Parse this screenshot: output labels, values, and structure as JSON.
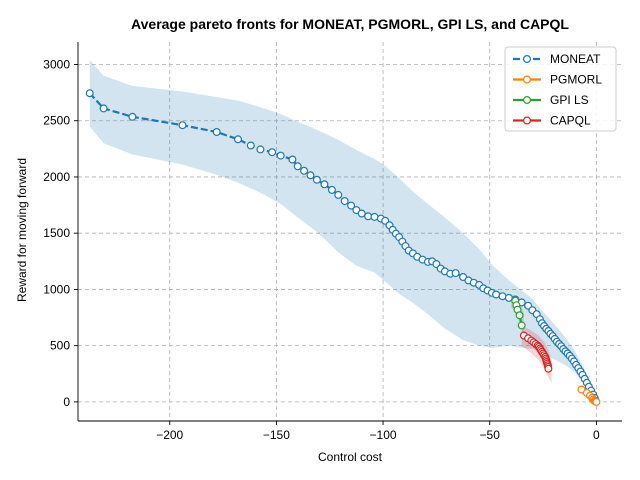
{
  "chart_data": {
    "type": "line",
    "title": "Average pareto fronts for MONEAT, PGMORL, GPI LS, and CAPQL",
    "xlabel": "Control cost",
    "ylabel": "Reward for moving forward",
    "xlim": [
      -243,
      12
    ],
    "ylim": [
      -170,
      3200
    ],
    "xticks": [
      -200,
      -150,
      -100,
      -50,
      0
    ],
    "xtick_labels": [
      "−200",
      "−150",
      "−100",
      "−50",
      "0"
    ],
    "yticks": [
      0,
      500,
      1000,
      1500,
      2000,
      2500,
      3000
    ],
    "ytick_labels": [
      "0",
      "500",
      "1000",
      "1500",
      "2000",
      "2500",
      "3000"
    ],
    "grid": true,
    "legend_position": "top-right",
    "series": [
      {
        "name": "MONEAT",
        "color": "#1f77b4",
        "linestyle": "dashed",
        "points": [
          [
            -237.5,
            2745
          ],
          [
            -231,
            2610
          ],
          [
            -217.5,
            2535
          ],
          [
            -194,
            2460
          ],
          [
            -178,
            2400
          ],
          [
            -168,
            2335
          ],
          [
            -162,
            2280
          ],
          [
            -157.5,
            2245
          ],
          [
            -152,
            2220
          ],
          [
            -148,
            2190
          ],
          [
            -142.5,
            2155
          ],
          [
            -140,
            2095
          ],
          [
            -137,
            2055
          ],
          [
            -134,
            2015
          ],
          [
            -131,
            1975
          ],
          [
            -127.5,
            1935
          ],
          [
            -124,
            1885
          ],
          [
            -121,
            1840
          ],
          [
            -118,
            1785
          ],
          [
            -115,
            1745
          ],
          [
            -112.5,
            1705
          ],
          [
            -110,
            1675
          ],
          [
            -107,
            1650
          ],
          [
            -104,
            1645
          ],
          [
            -101,
            1630
          ],
          [
            -99,
            1610
          ],
          [
            -97,
            1570
          ],
          [
            -95.5,
            1530
          ],
          [
            -94,
            1495
          ],
          [
            -92.5,
            1465
          ],
          [
            -91,
            1425
          ],
          [
            -89.5,
            1385
          ],
          [
            -88,
            1345
          ],
          [
            -86,
            1320
          ],
          [
            -84,
            1290
          ],
          [
            -81.5,
            1265
          ],
          [
            -79,
            1245
          ],
          [
            -77,
            1250
          ],
          [
            -75,
            1225
          ],
          [
            -73,
            1185
          ],
          [
            -71,
            1160
          ],
          [
            -68.5,
            1140
          ],
          [
            -66,
            1145
          ],
          [
            -62.5,
            1110
          ],
          [
            -60,
            1080
          ],
          [
            -57.5,
            1060
          ],
          [
            -55,
            1040
          ],
          [
            -53,
            1010
          ],
          [
            -51,
            990
          ],
          [
            -49,
            970
          ],
          [
            -47,
            955
          ],
          [
            -44,
            940
          ],
          [
            -41,
            925
          ],
          [
            -38,
            910
          ],
          [
            -35,
            885
          ],
          [
            -32,
            855
          ],
          [
            -30,
            815
          ],
          [
            -28,
            780
          ],
          [
            -26.5,
            735
          ],
          [
            -25.5,
            700
          ],
          [
            -24.5,
            675
          ],
          [
            -23.5,
            650
          ],
          [
            -22.5,
            630
          ],
          [
            -21.5,
            605
          ],
          [
            -20.5,
            585
          ],
          [
            -19.5,
            560
          ],
          [
            -18.5,
            535
          ],
          [
            -17.5,
            515
          ],
          [
            -16.5,
            495
          ],
          [
            -15.5,
            470
          ],
          [
            -14.5,
            450
          ],
          [
            -13.5,
            430
          ],
          [
            -12.5,
            410
          ],
          [
            -11.5,
            385
          ],
          [
            -10.5,
            360
          ],
          [
            -9.5,
            330
          ],
          [
            -8.5,
            300
          ],
          [
            -7.5,
            270
          ],
          [
            -6.5,
            240
          ],
          [
            -5.5,
            205
          ],
          [
            -4.5,
            170
          ],
          [
            -3.5,
            135
          ],
          [
            -2.5,
            100
          ],
          [
            -1.5,
            65
          ],
          [
            -0.8,
            35
          ],
          [
            -0.3,
            10
          ]
        ],
        "band_upper": [
          [
            -237.5,
            3040
          ],
          [
            -231,
            2900
          ],
          [
            -217.5,
            2810
          ],
          [
            -194,
            2760
          ],
          [
            -178,
            2710
          ],
          [
            -168,
            2680
          ],
          [
            -157.5,
            2620
          ],
          [
            -148,
            2560
          ],
          [
            -140,
            2490
          ],
          [
            -131,
            2420
          ],
          [
            -121,
            2330
          ],
          [
            -112.5,
            2240
          ],
          [
            -104,
            2160
          ],
          [
            -99,
            2100
          ],
          [
            -92.5,
            1990
          ],
          [
            -86,
            1870
          ],
          [
            -79,
            1760
          ],
          [
            -71,
            1640
          ],
          [
            -62.5,
            1500
          ],
          [
            -55,
            1360
          ],
          [
            -49,
            1220
          ],
          [
            -41,
            1080
          ],
          [
            -35,
            990
          ],
          [
            -30,
            920
          ],
          [
            -26,
            820
          ],
          [
            -22,
            740
          ],
          [
            -18,
            650
          ],
          [
            -14,
            560
          ],
          [
            -10,
            450
          ],
          [
            -6,
            310
          ],
          [
            -3,
            180
          ],
          [
            -1,
            80
          ],
          [
            0,
            20
          ]
        ],
        "band_lower": [
          [
            -237.5,
            2450
          ],
          [
            -231,
            2300
          ],
          [
            -217.5,
            2200
          ],
          [
            -194,
            2110
          ],
          [
            -178,
            2020
          ],
          [
            -168,
            1950
          ],
          [
            -157.5,
            1860
          ],
          [
            -148,
            1760
          ],
          [
            -140,
            1640
          ],
          [
            -131,
            1510
          ],
          [
            -121,
            1330
          ],
          [
            -112.5,
            1210
          ],
          [
            -104,
            1150
          ],
          [
            -99,
            1070
          ],
          [
            -92.5,
            960
          ],
          [
            -86,
            880
          ],
          [
            -79,
            780
          ],
          [
            -71,
            650
          ],
          [
            -62.5,
            550
          ],
          [
            -55,
            500
          ],
          [
            -49,
            480
          ],
          [
            -41,
            500
          ],
          [
            -35,
            480
          ],
          [
            -30,
            470
          ],
          [
            -26,
            430
          ],
          [
            -22,
            400
          ],
          [
            -18,
            360
          ],
          [
            -14,
            320
          ],
          [
            -10,
            260
          ],
          [
            -6,
            180
          ],
          [
            -3,
            90
          ],
          [
            -1,
            20
          ],
          [
            0,
            -10
          ]
        ]
      },
      {
        "name": "PGMORL",
        "color": "#ff7f0e",
        "linestyle": "solid",
        "points": [
          [
            -7,
            110
          ],
          [
            -4.5,
            80
          ],
          [
            -3,
            55
          ],
          [
            -2,
            35
          ],
          [
            -1.5,
            20
          ],
          [
            -1,
            10
          ],
          [
            -0.6,
            5
          ],
          [
            -0.3,
            2
          ],
          [
            0,
            0
          ]
        ],
        "band_upper": [
          [
            -8,
            140
          ],
          [
            -5,
            110
          ],
          [
            -2,
            60
          ],
          [
            0,
            15
          ]
        ],
        "band_lower": [
          [
            -8,
            85
          ],
          [
            -5,
            50
          ],
          [
            -2,
            10
          ],
          [
            0,
            -15
          ]
        ]
      },
      {
        "name": "GPI LS",
        "color": "#2ca02c",
        "linestyle": "solid",
        "points": [
          [
            -38,
            900
          ],
          [
            -37.5,
            860
          ],
          [
            -37,
            820
          ],
          [
            -36,
            770
          ],
          [
            -35,
            680
          ]
        ],
        "band_upper": [
          [
            -40,
            960
          ],
          [
            -38,
            940
          ],
          [
            -36,
            880
          ],
          [
            -34,
            800
          ]
        ],
        "band_lower": [
          [
            -40,
            840
          ],
          [
            -38,
            800
          ],
          [
            -36,
            700
          ],
          [
            -34,
            580
          ]
        ]
      },
      {
        "name": "CAPQL",
        "color": "#d62728",
        "linestyle": "solid",
        "points": [
          [
            -34,
            590
          ],
          [
            -32,
            565
          ],
          [
            -30.5,
            545
          ],
          [
            -29.5,
            530
          ],
          [
            -28.5,
            515
          ],
          [
            -27.5,
            500
          ],
          [
            -27,
            490
          ],
          [
            -26.5,
            475
          ],
          [
            -26,
            460
          ],
          [
            -25.5,
            445
          ],
          [
            -25,
            430
          ],
          [
            -24.5,
            415
          ],
          [
            -24,
            400
          ],
          [
            -23.7,
            385
          ],
          [
            -23.5,
            370
          ],
          [
            -23.3,
            355
          ],
          [
            -23,
            340
          ],
          [
            -22.8,
            325
          ],
          [
            -22.6,
            310
          ],
          [
            -22.5,
            295
          ]
        ],
        "band_upper": [
          [
            -35,
            680
          ],
          [
            -31,
            640
          ],
          [
            -27,
            590
          ],
          [
            -24,
            520
          ],
          [
            -22,
            430
          ],
          [
            -21,
            380
          ]
        ],
        "band_lower": [
          [
            -35,
            500
          ],
          [
            -31,
            440
          ],
          [
            -27,
            370
          ],
          [
            -24,
            280
          ],
          [
            -22,
            200
          ],
          [
            -21,
            170
          ]
        ]
      }
    ]
  }
}
